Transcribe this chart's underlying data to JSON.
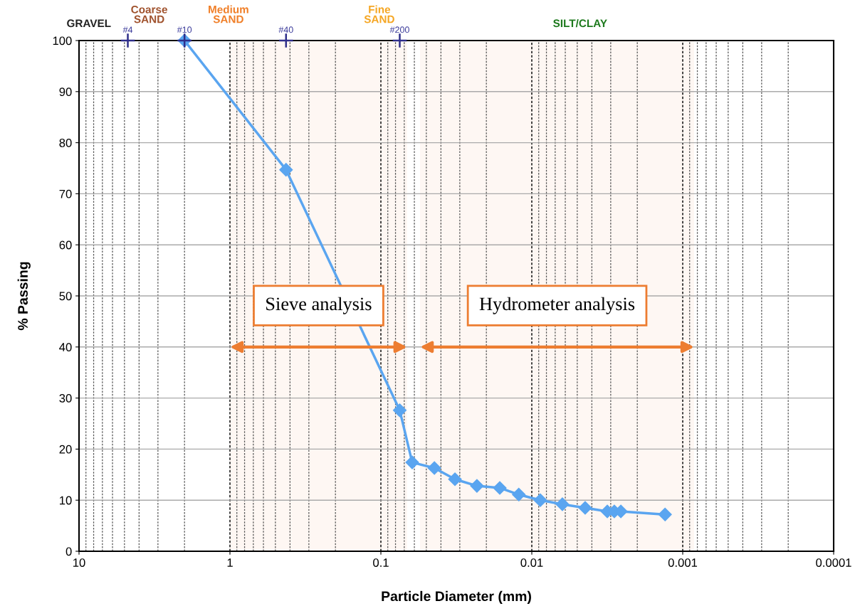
{
  "chart_data": {
    "type": "line",
    "xlabel": "Particle Diameter (mm)",
    "ylabel": "% Passing",
    "log": "x",
    "xlim": [
      10,
      0.0001
    ],
    "xticks": [
      10,
      1,
      0.1,
      0.01,
      0.001,
      0.0001
    ],
    "ylim": [
      0,
      100
    ],
    "yticks": [
      0,
      10,
      20,
      30,
      40,
      50,
      60,
      70,
      80,
      90,
      100
    ],
    "grid": true,
    "series": [
      {
        "color": "#5aa5f0",
        "marker": "diamond",
        "x": [
          2.0,
          0.425,
          0.075,
          0.062,
          0.0442,
          0.0323,
          0.0231,
          0.0163,
          0.0122,
          0.00878,
          0.00627,
          0.00443,
          0.00316,
          0.00284,
          0.00257,
          0.00131
        ],
        "values": [
          100,
          74.7,
          27.6,
          17.4,
          16.3,
          14.1,
          12.8,
          12.4,
          11.1,
          10.0,
          9.2,
          8.5,
          7.8,
          7.8,
          7.8,
          7.2
        ]
      },
      {
        "type": "scatter",
        "color": "#2e2e8a",
        "marker": "cross",
        "x": [
          4.75,
          2.0,
          0.425,
          0.075
        ],
        "values": [
          100,
          100,
          100,
          100
        ]
      }
    ],
    "annotations": [
      {
        "text": "#4",
        "x": 4.75,
        "y": 100
      },
      {
        "text": "#10",
        "x": 2.0,
        "y": 100
      },
      {
        "text": "#40",
        "x": 0.425,
        "y": 100
      },
      {
        "text": "#200",
        "x": 0.075,
        "y": 100
      },
      "GRAVEL",
      "Coarse\nSAND",
      "Medium\nSAND",
      "Fine\nSAND",
      "SILT/CLAY"
    ],
    "bands": [
      {
        "axis": "x",
        "from": 1.0,
        "to": 0.067,
        "label": "Sieve analysis",
        "color": "#ed7d31"
      },
      {
        "axis": "x",
        "from": 0.055,
        "to": 0.00084,
        "label": "Hydrometer analysis",
        "color": "#ed7d31"
      }
    ]
  }
}
